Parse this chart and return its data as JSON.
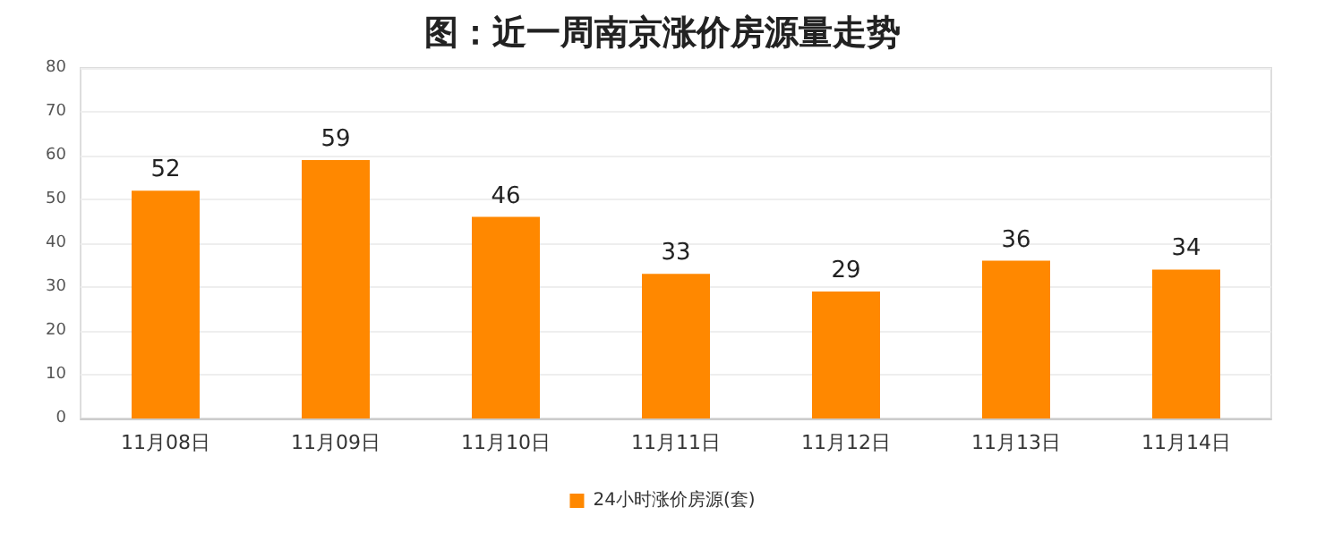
{
  "chart_data": {
    "type": "bar",
    "title": "图：近一周南京涨价房源量走势",
    "categories": [
      "11月08日",
      "11月09日",
      "11月10日",
      "11月11日",
      "11月12日",
      "11月13日",
      "11月14日"
    ],
    "series": [
      {
        "name": "24小时涨价房源(套)",
        "color": "#ff8800",
        "values": [
          52,
          59,
          46,
          33,
          29,
          36,
          34
        ]
      }
    ],
    "ylim": [
      0,
      80
    ],
    "yticks": [
      0,
      10,
      20,
      30,
      40,
      50,
      60,
      70,
      80
    ],
    "grid": "y",
    "legend": "bottom",
    "data_labels": true
  }
}
